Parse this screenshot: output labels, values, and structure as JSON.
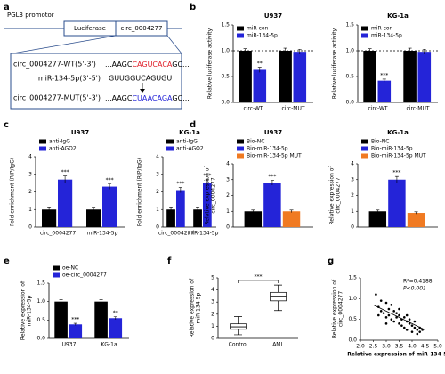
{
  "diagram": {
    "panel": "a",
    "promoter": "PGL3 promotor",
    "boxes": [
      "Luciferase",
      "circ_0004277"
    ],
    "sequences": [
      {
        "name": "circ_0004277-WT(5'-3')",
        "parts": [
          "...AAGC",
          "CAGUCACA",
          "GC..."
        ]
      },
      {
        "name": "miR-134-5p(3'-5')",
        "parts": [
          "GUUGGUCAGUGU"
        ]
      },
      {
        "name": "circ_0004277-MUT(5'-3')",
        "parts": [
          "...AAGC",
          "CUAACAGA",
          "GC..."
        ]
      }
    ]
  },
  "chart_data": [
    {
      "type": "bar",
      "panel": "b",
      "title": "U937",
      "ylabel": [
        "Relative luciferase activity"
      ],
      "legend": "upper left",
      "categories": [
        "circ-WT",
        "circ-MUT"
      ],
      "reference_line": 1,
      "series": [
        {
          "name": "miR-con",
          "color": "#000000",
          "values": [
            1.0,
            1.0
          ],
          "errors": [
            0.04,
            0.05
          ]
        },
        {
          "name": "miR-134-5p",
          "color": "#2424d8",
          "values": [
            0.63,
            0.98
          ],
          "errors": [
            0.05,
            0.05
          ],
          "significance": [
            "**",
            null
          ]
        }
      ],
      "ylim": [
        0,
        1.5
      ],
      "yticks": [
        {
          "value": 0,
          "label": "0.0"
        },
        0.5,
        {
          "value": 1,
          "label": "1.0"
        },
        1.5
      ]
    },
    {
      "type": "bar",
      "title": "KG-1a",
      "ylabel": [
        "Relative luciferase activity"
      ],
      "legend": "upper left",
      "categories": [
        "circ-WT",
        "circ-MUT"
      ],
      "reference_line": 1,
      "series": [
        {
          "name": "miR-con",
          "color": "#000000",
          "values": [
            1.0,
            1.0
          ],
          "errors": [
            0.04,
            0.05
          ]
        },
        {
          "name": "miR-134-5p",
          "color": "#2424d8",
          "values": [
            0.42,
            0.98
          ],
          "errors": [
            0.03,
            0.05
          ],
          "significance": [
            "***",
            null
          ]
        }
      ],
      "ylim": [
        0,
        1.5
      ],
      "yticks": [
        {
          "value": 0,
          "label": "0.0"
        },
        0.5,
        {
          "value": 1,
          "label": "1.0"
        },
        1.5
      ]
    },
    {
      "type": "bar",
      "panel": "c",
      "title": "U937",
      "ylabel": [
        "Fold enrichment (RIP/IgG)"
      ],
      "legend": "top",
      "categories": [
        "circ_0004277",
        "miR-134-5p"
      ],
      "series": [
        {
          "name": "anti-IgG",
          "color": "#000000",
          "values": [
            1.0,
            1.0
          ],
          "errors": [
            0.1,
            0.08
          ]
        },
        {
          "name": "anti-AGO2",
          "color": "#2424d8",
          "values": [
            2.7,
            2.3
          ],
          "errors": [
            0.2,
            0.15
          ],
          "significance": [
            "***",
            "***"
          ]
        }
      ],
      "ylim": [
        0,
        4
      ],
      "yticks": [
        0,
        1,
        2,
        3,
        4
      ]
    },
    {
      "type": "bar",
      "title": "KG-1a",
      "ylabel": [
        "Fold enrichment (RIP/IgG)"
      ],
      "legend": "top",
      "categories": [
        "circ_0004277",
        "miR-134-5p"
      ],
      "series": [
        {
          "name": "anti-IgG",
          "color": "#000000",
          "values": [
            1.0,
            1.0
          ],
          "errors": [
            0.1,
            0.1
          ]
        },
        {
          "name": "anti-AGO2",
          "color": "#2424d8",
          "values": [
            2.1,
            2.5
          ],
          "errors": [
            0.15,
            0.2
          ],
          "significance": [
            "***",
            "***"
          ]
        }
      ],
      "ylim": [
        0,
        4
      ],
      "yticks": [
        0,
        1,
        2,
        3,
        4
      ]
    },
    {
      "type": "bar",
      "panel": "d",
      "title": "U937",
      "ylabel": [
        "Relative expression of",
        "circ_0004277"
      ],
      "legend": "top",
      "categories": [
        null
      ],
      "series": [
        {
          "name": "Bio-NC",
          "color": "#000000",
          "values": [
            1.0
          ],
          "errors": [
            0.08
          ]
        },
        {
          "name": "Bio-miR-134-5p",
          "color": "#2424d8",
          "values": [
            2.8
          ],
          "errors": [
            0.15
          ],
          "significance": [
            "***"
          ]
        },
        {
          "name": "Bio-miR-134-5p MUT",
          "color": "#f07a22",
          "values": [
            1.0
          ],
          "errors": [
            0.08
          ]
        }
      ],
      "ylim": [
        0,
        4
      ],
      "yticks": [
        0,
        1,
        2,
        3,
        4
      ]
    },
    {
      "type": "bar",
      "title": "KG-1a",
      "ylabel": [
        "Relative expression of",
        "circ_0004277"
      ],
      "legend": "top",
      "categories": [
        null
      ],
      "series": [
        {
          "name": "Bio-NC",
          "color": "#000000",
          "values": [
            1.0
          ],
          "errors": [
            0.08
          ]
        },
        {
          "name": "Bio-miR-134-5p",
          "color": "#2424d8",
          "values": [
            3.0
          ],
          "errors": [
            0.2
          ],
          "significance": [
            "***"
          ]
        },
        {
          "name": "Bio-miR-134-5p MUT",
          "color": "#f07a22",
          "values": [
            0.9
          ],
          "errors": [
            0.07
          ]
        }
      ],
      "ylim": [
        0,
        4
      ],
      "yticks": [
        0,
        1,
        2,
        3,
        4
      ]
    },
    {
      "type": "bar",
      "panel": "e",
      "ylabel": [
        "Relative expression of",
        "miR-134-5p"
      ],
      "legend": "top",
      "categories": [
        "U937",
        "KG-1a"
      ],
      "series": [
        {
          "name": "oe-NC",
          "color": "#000000",
          "values": [
            1.0,
            1.0
          ],
          "errors": [
            0.05,
            0.05
          ]
        },
        {
          "name": "oe-circ_0004277",
          "color": "#2424d8",
          "values": [
            0.38,
            0.55
          ],
          "errors": [
            0.03,
            0.04
          ],
          "significance": [
            "***",
            "**"
          ]
        }
      ],
      "ylim": [
        0,
        1.5
      ],
      "yticks": [
        {
          "value": 0,
          "label": "0.0"
        },
        0.5,
        {
          "value": 1,
          "label": "1.0"
        },
        1.5
      ]
    },
    {
      "type": "box",
      "panel": "f",
      "ylabel": [
        "Relative expression of",
        "miR-134-5p"
      ],
      "significance": "***",
      "categories": [
        "Control",
        "AML"
      ],
      "boxes": [
        {
          "min": 0.3,
          "q1": 0.75,
          "median": 0.95,
          "q3": 1.2,
          "max": 1.8
        },
        {
          "min": 2.3,
          "q1": 3.1,
          "median": 3.5,
          "q3": 3.8,
          "max": 4.4
        }
      ],
      "ylim": [
        0,
        5
      ],
      "yticks": [
        0,
        1,
        2,
        3,
        4,
        5
      ]
    },
    {
      "type": "scatter",
      "panel": "g",
      "ylabel": [
        "Relative expression of",
        "circ_0004277"
      ],
      "xlabel": "Relative expression of miR-134-5p",
      "annotations": [
        "R²=0.4188",
        "P<0.001"
      ],
      "color": "#000000",
      "x": [
        2.6,
        2.7,
        2.8,
        2.8,
        2.9,
        3.0,
        3.0,
        3.1,
        3.1,
        3.2,
        3.2,
        3.3,
        3.3,
        3.4,
        3.4,
        3.5,
        3.5,
        3.6,
        3.6,
        3.7,
        3.7,
        3.8,
        3.8,
        3.9,
        3.9,
        4.0,
        4.0,
        4.1,
        4.1,
        4.2,
        4.2,
        4.3,
        4.3,
        4.4,
        2.7,
        3.0,
        3.5,
        3.8
      ],
      "values": [
        1.1,
        0.8,
        0.95,
        0.7,
        0.65,
        0.9,
        0.55,
        0.75,
        0.6,
        0.85,
        0.5,
        0.7,
        0.45,
        0.65,
        0.55,
        0.6,
        0.4,
        0.5,
        0.35,
        0.55,
        0.3,
        0.45,
        0.25,
        0.4,
        0.5,
        0.35,
        0.2,
        0.3,
        0.45,
        0.25,
        0.15,
        0.3,
        0.2,
        0.25,
        0.6,
        0.4,
        0.75,
        0.6
      ],
      "trend": {
        "x": [
          2.5,
          4.5
        ],
        "y": [
          0.85,
          0.25
        ]
      },
      "xlim": [
        2,
        5
      ],
      "xticks": [
        {
          "value": 2,
          "label": "2.0"
        },
        2.5,
        {
          "value": 3,
          "label": "3.0"
        },
        3.5,
        {
          "value": 4,
          "label": "4.0"
        },
        4.5,
        {
          "value": 5,
          "label": "5.0"
        }
      ],
      "ylim": [
        0,
        1.5
      ],
      "yticks": [
        {
          "value": 0,
          "label": "0.0"
        },
        0.5,
        {
          "value": 1,
          "label": "1.0"
        },
        1.5
      ]
    }
  ]
}
